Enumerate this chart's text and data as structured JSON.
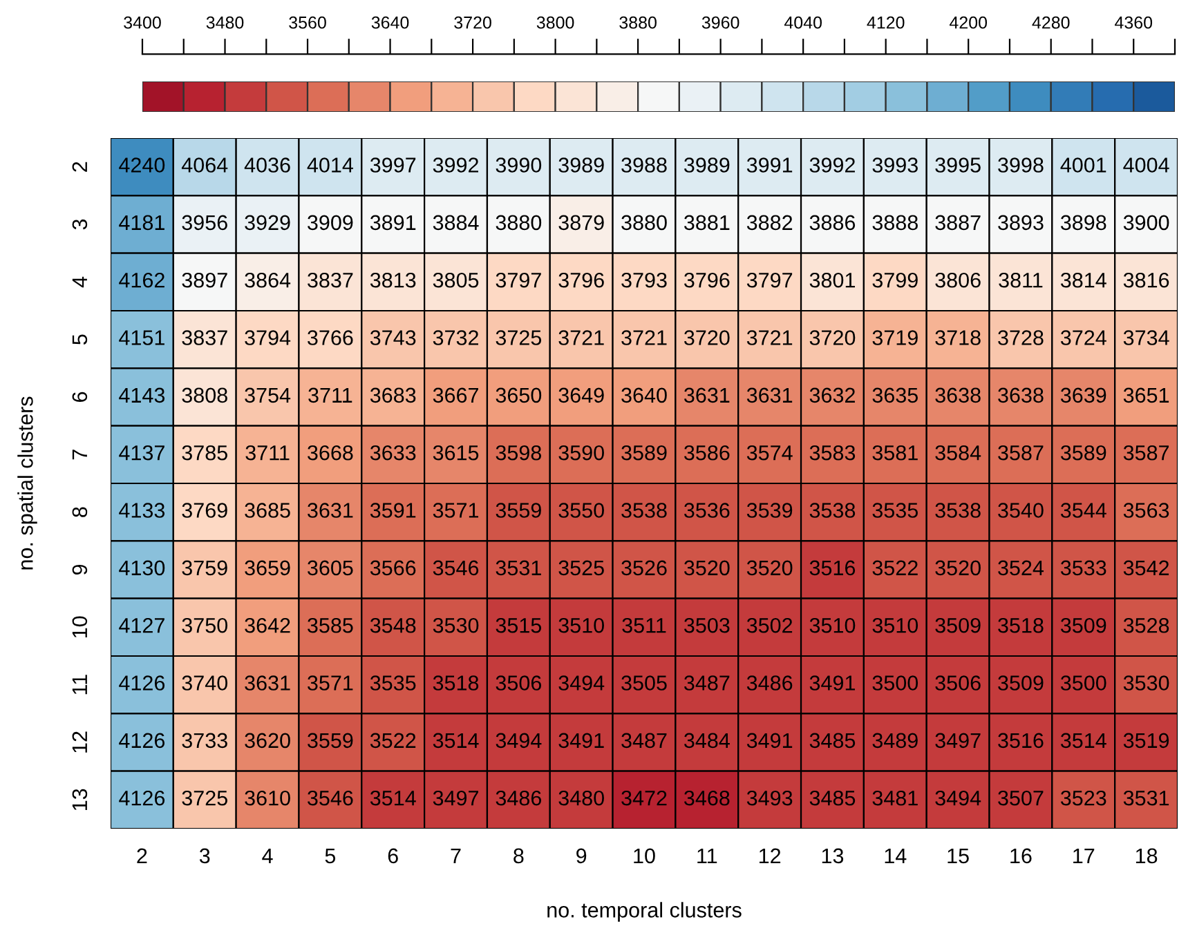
{
  "chart_data": {
    "type": "heatmap",
    "xlabel": "no. temporal clusters",
    "ylabel": "no. spatial clusters",
    "categories": [
      "2",
      "3",
      "4",
      "5",
      "6",
      "7",
      "8",
      "9",
      "10",
      "11",
      "12",
      "13",
      "14",
      "15",
      "16",
      "17",
      "18"
    ],
    "y_categories": [
      "2",
      "3",
      "4",
      "5",
      "6",
      "7",
      "8",
      "9",
      "10",
      "11",
      "12",
      "13"
    ],
    "cells": [
      [
        4240,
        4064,
        4036,
        4014,
        3997,
        3992,
        3990,
        3989,
        3988,
        3989,
        3991,
        3992,
        3993,
        3995,
        3998,
        4001,
        4004
      ],
      [
        4181,
        3956,
        3929,
        3909,
        3891,
        3884,
        3880,
        3879,
        3880,
        3881,
        3882,
        3886,
        3888,
        3887,
        3893,
        3898,
        3900
      ],
      [
        4162,
        3897,
        3864,
        3837,
        3813,
        3805,
        3797,
        3796,
        3793,
        3796,
        3797,
        3801,
        3799,
        3806,
        3811,
        3814,
        3816
      ],
      [
        4151,
        3837,
        3794,
        3766,
        3743,
        3732,
        3725,
        3721,
        3721,
        3720,
        3721,
        3720,
        3719,
        3718,
        3728,
        3724,
        3734
      ],
      [
        4143,
        3808,
        3754,
        3711,
        3683,
        3667,
        3650,
        3649,
        3640,
        3631,
        3631,
        3632,
        3635,
        3638,
        3638,
        3639,
        3651
      ],
      [
        4137,
        3785,
        3711,
        3668,
        3633,
        3615,
        3598,
        3590,
        3589,
        3586,
        3574,
        3583,
        3581,
        3584,
        3587,
        3589,
        3587
      ],
      [
        4133,
        3769,
        3685,
        3631,
        3591,
        3571,
        3559,
        3550,
        3538,
        3536,
        3539,
        3538,
        3535,
        3538,
        3540,
        3544,
        3563
      ],
      [
        4130,
        3759,
        3659,
        3605,
        3566,
        3546,
        3531,
        3525,
        3526,
        3520,
        3520,
        3516,
        3522,
        3520,
        3524,
        3533,
        3542
      ],
      [
        4127,
        3750,
        3642,
        3585,
        3548,
        3530,
        3515,
        3510,
        3511,
        3503,
        3502,
        3510,
        3510,
        3509,
        3518,
        3509,
        3528
      ],
      [
        4126,
        3740,
        3631,
        3571,
        3535,
        3518,
        3506,
        3494,
        3505,
        3487,
        3486,
        3491,
        3500,
        3506,
        3509,
        3500,
        3530
      ],
      [
        4126,
        3733,
        3620,
        3559,
        3522,
        3514,
        3494,
        3491,
        3487,
        3484,
        3491,
        3485,
        3489,
        3497,
        3516,
        3514,
        3519
      ],
      [
        4126,
        3725,
        3610,
        3546,
        3514,
        3497,
        3486,
        3480,
        3472,
        3468,
        3493,
        3485,
        3481,
        3494,
        3507,
        3523,
        3531
      ]
    ],
    "data_labels": true,
    "clim": [
      3400,
      4400
    ],
    "cticks": [
      3400,
      {
        "value": 3440,
        "label": null
      },
      3480,
      {
        "value": 3520,
        "label": null
      },
      3560,
      {
        "value": 3600,
        "label": null
      },
      3640,
      {
        "value": 3680,
        "label": null
      },
      3720,
      {
        "value": 3760,
        "label": null
      },
      3800,
      {
        "value": 3840,
        "label": null
      },
      3880,
      {
        "value": 3920,
        "label": null
      },
      3960,
      {
        "value": 4000,
        "label": null
      },
      4040,
      {
        "value": 4080,
        "label": null
      },
      4120,
      {
        "value": 4160,
        "label": null
      },
      4200,
      {
        "value": 4240,
        "label": null
      },
      4280,
      {
        "value": 4320,
        "label": null
      },
      4360,
      {
        "value": 4400,
        "label": null
      }
    ]
  }
}
